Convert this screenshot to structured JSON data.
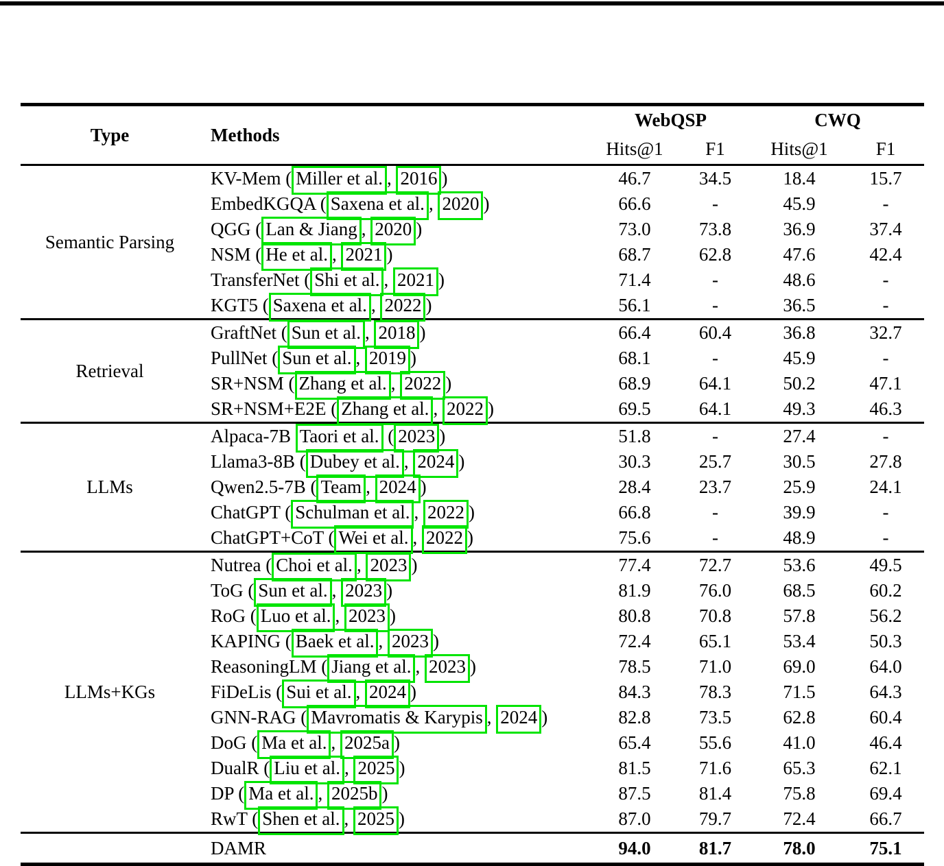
{
  "colors": {
    "link_box": "#00e400",
    "rule": "#000000"
  },
  "table": {
    "headers": {
      "type": "Type",
      "methods": "Methods",
      "webqsp": "WebQSP",
      "cwq": "CWQ",
      "sub": [
        "Hits@1",
        "F1",
        "Hits@1",
        "F1"
      ]
    },
    "groups": [
      {
        "type": "Semantic Parsing",
        "rows": [
          {
            "pre": "KV-Mem (",
            "author": "Miller et al.",
            "mid": ", ",
            "year": "2016",
            "post": ")",
            "values": [
              "46.7",
              "34.5",
              "18.4",
              "15.7"
            ]
          },
          {
            "pre": "EmbedKGQA (",
            "author": "Saxena et al.",
            "mid": ", ",
            "year": "2020",
            "post": ")",
            "values": [
              "66.6",
              "-",
              "45.9",
              "-"
            ]
          },
          {
            "pre": "QGG (",
            "author": "Lan & Jiang",
            "mid": ", ",
            "year": "2020",
            "post": ")",
            "values": [
              "73.0",
              "73.8",
              "36.9",
              "37.4"
            ]
          },
          {
            "pre": "NSM (",
            "author": "He et al.",
            "mid": ", ",
            "year": "2021",
            "post": ")",
            "values": [
              "68.7",
              "62.8",
              "47.6",
              "42.4"
            ]
          },
          {
            "pre": "TransferNet (",
            "author": "Shi et al.",
            "mid": ", ",
            "year": "2021",
            "post": ")",
            "values": [
              "71.4",
              "-",
              "48.6",
              "-"
            ]
          },
          {
            "pre": "KGT5 (",
            "author": "Saxena et al.",
            "mid": ", ",
            "year": "2022",
            "post": ")",
            "values": [
              "56.1",
              "-",
              "36.5",
              "-"
            ]
          }
        ]
      },
      {
        "type": "Retrieval",
        "rows": [
          {
            "pre": "GraftNet (",
            "author": "Sun et al.",
            "mid": ", ",
            "year": "2018",
            "post": ")",
            "values": [
              "66.4",
              "60.4",
              "36.8",
              "32.7"
            ]
          },
          {
            "pre": "PullNet (",
            "author": "Sun et al.",
            "mid": ", ",
            "year": "2019",
            "post": ")",
            "values": [
              "68.1",
              "-",
              "45.9",
              "-"
            ]
          },
          {
            "pre": "SR+NSM (",
            "author": "Zhang et al.",
            "mid": ", ",
            "year": "2022",
            "post": ")",
            "values": [
              "68.9",
              "64.1",
              "50.2",
              "47.1"
            ]
          },
          {
            "pre": "SR+NSM+E2E (",
            "author": "Zhang et al.",
            "mid": ", ",
            "year": "2022",
            "post": ")",
            "values": [
              "69.5",
              "64.1",
              "49.3",
              "46.3"
            ]
          }
        ]
      },
      {
        "type": "LLMs",
        "rows": [
          {
            "pre": "Alpaca-7B ",
            "author": "Taori et al.",
            "mid": " (",
            "year": "2023",
            "post": ")",
            "values": [
              "51.8",
              "-",
              "27.4",
              "-"
            ]
          },
          {
            "pre": "Llama3-8B (",
            "author": "Dubey et al.",
            "mid": ", ",
            "year": "2024",
            "post": ")",
            "values": [
              "30.3",
              "25.7",
              "30.5",
              "27.8"
            ]
          },
          {
            "pre": "Qwen2.5-7B (",
            "author": "Team",
            "mid": ", ",
            "year": "2024",
            "post": ")",
            "values": [
              "28.4",
              "23.7",
              "25.9",
              "24.1"
            ]
          },
          {
            "pre": "ChatGPT (",
            "author": "Schulman et al.",
            "mid": ", ",
            "year": "2022",
            "post": ")",
            "values": [
              "66.8",
              "-",
              "39.9",
              "-"
            ]
          },
          {
            "pre": "ChatGPT+CoT (",
            "author": "Wei et al.",
            "mid": ", ",
            "year": "2022",
            "post": ")",
            "values": [
              "75.6",
              "-",
              "48.9",
              "-"
            ]
          }
        ]
      },
      {
        "type": "LLMs+KGs",
        "rows": [
          {
            "pre": "Nutrea (",
            "author": "Choi et al.",
            "mid": ", ",
            "year": "2023",
            "post": ")",
            "values": [
              "77.4",
              "72.7",
              "53.6",
              "49.5"
            ]
          },
          {
            "pre": "ToG (",
            "author": "Sun et al.",
            "mid": ", ",
            "year": "2023",
            "post": ")",
            "values": [
              "81.9",
              "76.0",
              "68.5",
              "60.2"
            ]
          },
          {
            "pre": "RoG (",
            "author": "Luo et al.",
            "mid": ", ",
            "year": "2023",
            "post": ")",
            "values": [
              "80.8",
              "70.8",
              "57.8",
              "56.2"
            ]
          },
          {
            "pre": "KAPING (",
            "author": "Baek et al.",
            "mid": ", ",
            "year": "2023",
            "post": ")",
            "values": [
              "72.4",
              "65.1",
              "53.4",
              "50.3"
            ]
          },
          {
            "pre": "ReasoningLM (",
            "author": "Jiang et al.",
            "mid": ", ",
            "year": "2023",
            "post": ")",
            "values": [
              "78.5",
              "71.0",
              "69.0",
              "64.0"
            ]
          },
          {
            "pre": "FiDeLis (",
            "author": "Sui et al.",
            "mid": ", ",
            "year": "2024",
            "post": ")",
            "values": [
              "84.3",
              "78.3",
              "71.5",
              "64.3"
            ]
          },
          {
            "pre": "GNN-RAG (",
            "author": "Mavromatis & Karypis",
            "mid": ", ",
            "year": "2024",
            "post": ")",
            "values": [
              "82.8",
              "73.5",
              "62.8",
              "60.4"
            ]
          },
          {
            "pre": "DoG (",
            "author": "Ma et al.",
            "mid": ", ",
            "year": "2025a",
            "post": ")",
            "values": [
              "65.4",
              "55.6",
              "41.0",
              "46.4"
            ]
          },
          {
            "pre": "DualR (",
            "author": "Liu et al.",
            "mid": ", ",
            "year": "2025",
            "post": ")",
            "values": [
              "81.5",
              "71.6",
              "65.3",
              "62.1"
            ]
          },
          {
            "pre": "DP (",
            "author": "Ma et al.",
            "mid": ", ",
            "year": "2025b",
            "post": ")",
            "values": [
              "87.5",
              "81.4",
              "75.8",
              "69.4"
            ]
          },
          {
            "pre": "RwT (",
            "author": "Shen et al.",
            "mid": ", ",
            "year": "2025",
            "post": ")",
            "values": [
              "87.0",
              "79.7",
              "72.4",
              "66.7"
            ]
          }
        ]
      }
    ],
    "footer": {
      "method": "DAMR",
      "values": [
        "94.0",
        "81.7",
        "78.0",
        "75.1"
      ]
    }
  }
}
